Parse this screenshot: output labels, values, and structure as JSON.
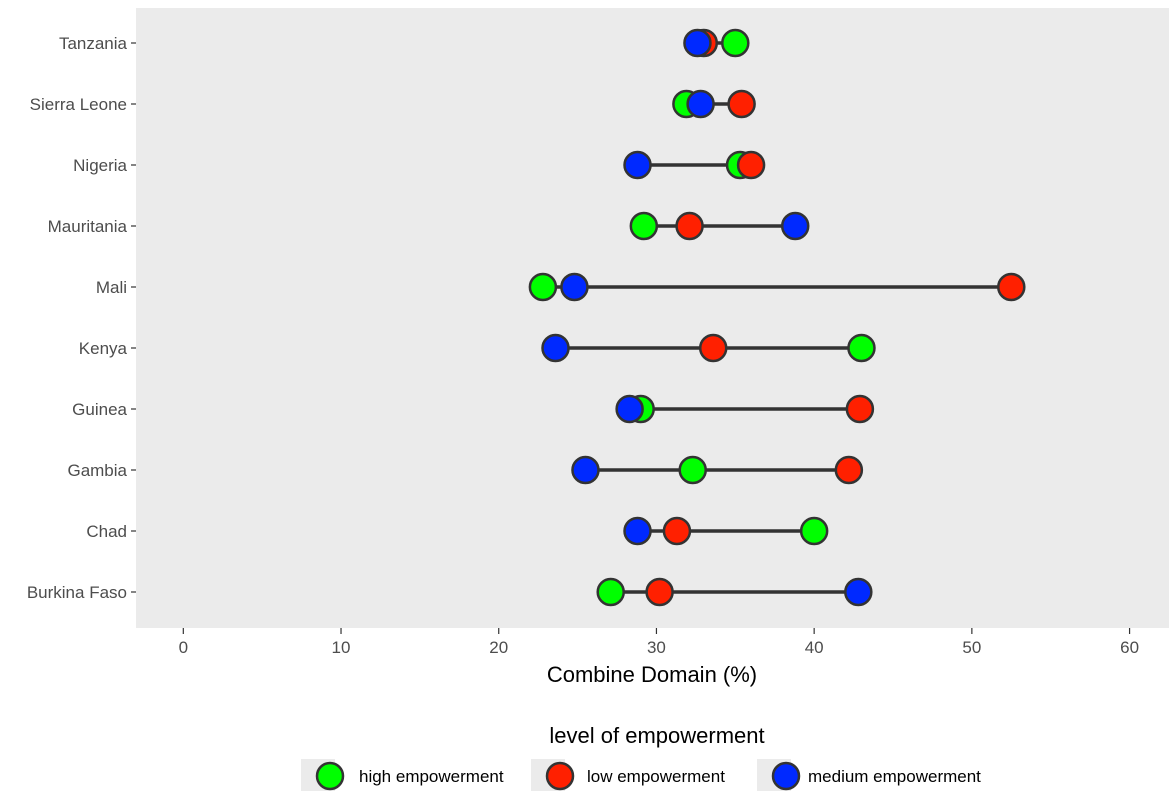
{
  "chart_data": {
    "type": "scatter",
    "subtype": "dumbbell",
    "title": "",
    "xlabel": "Combine Domain (%)",
    "ylabel": "",
    "xlim": [
      -3,
      62.5
    ],
    "x_ticks": [
      0,
      10,
      20,
      30,
      40,
      50,
      60
    ],
    "grid": false,
    "categories": [
      "Burkina Faso",
      "Chad",
      "Gambia",
      "Guinea",
      "Kenya",
      "Mali",
      "Mauritania",
      "Nigeria",
      "Sierra Leone",
      "Tanzania"
    ],
    "series": [
      {
        "name": "high empowerment",
        "color": "#00ff00",
        "values": [
          27.1,
          40.0,
          32.3,
          29.0,
          43.0,
          22.8,
          29.2,
          35.3,
          31.9,
          35.0
        ]
      },
      {
        "name": "low empowerment",
        "color": "#ff2000",
        "values": [
          30.2,
          31.3,
          42.2,
          42.9,
          33.6,
          52.5,
          32.1,
          36.0,
          35.4,
          33.0
        ]
      },
      {
        "name": "medium empowerment",
        "color": "#0029ff",
        "values": [
          42.8,
          28.8,
          25.5,
          28.3,
          23.6,
          24.8,
          38.8,
          28.8,
          32.8,
          32.6
        ]
      }
    ],
    "legend": {
      "title": "level of empowerment",
      "position": "bottom",
      "entries": [
        "high empowerment",
        "low empowerment",
        "medium empowerment"
      ]
    },
    "colors": {
      "panel_background": "#ebebeb",
      "segment": "#333333",
      "point_outline": "#333333"
    }
  }
}
